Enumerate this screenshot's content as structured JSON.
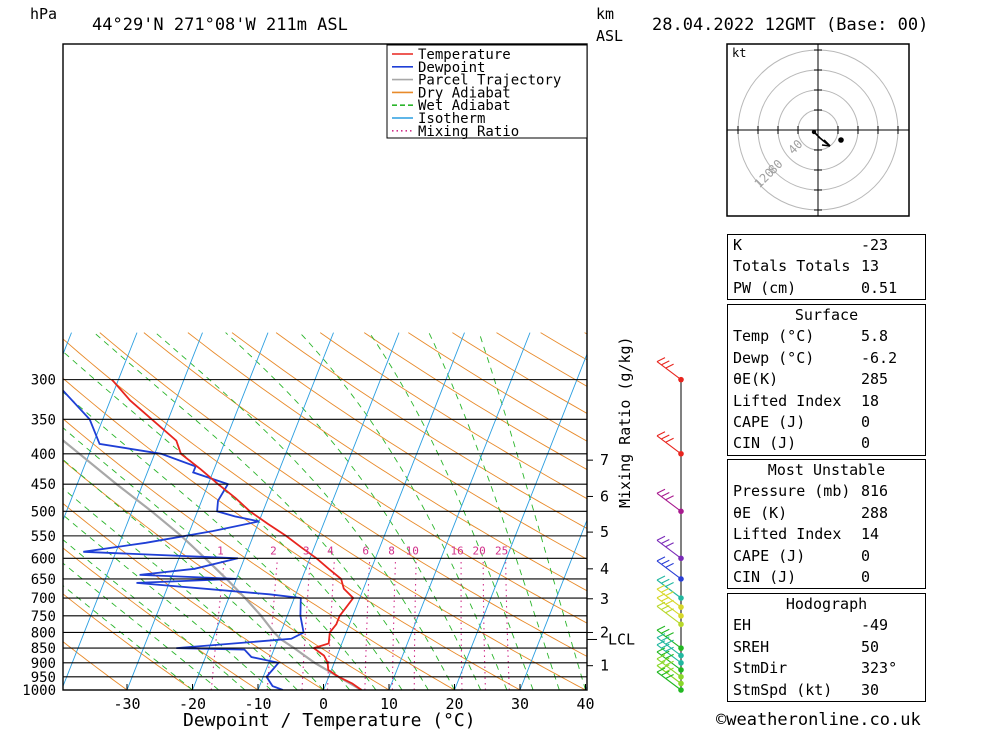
{
  "header": {
    "hpa_label": "hPa",
    "location": "44°29'N  271°08'W  211m  ASL",
    "km_label": "km",
    "asl_label": "ASL",
    "datetime": "28.04.2022  12GMT  (Base: 00)"
  },
  "chart_data": {
    "type": "skew-t",
    "xlabel": "Dewpoint / Temperature (°C)",
    "right_axis_label": "Mixing Ratio (g/kg)",
    "x_ticks": [
      -30,
      -20,
      -10,
      0,
      10,
      20,
      30,
      40
    ],
    "xlim": [
      -40,
      40
    ],
    "pressure_levels": [
      300,
      350,
      400,
      450,
      500,
      550,
      600,
      650,
      700,
      750,
      800,
      850,
      900,
      950,
      1000
    ],
    "ylim": [
      1000,
      300
    ],
    "km_ticks": [
      {
        "label": "1",
        "p": 910
      },
      {
        "label": "2",
        "p": 800
      },
      {
        "label": "3",
        "p": 702
      },
      {
        "label": "4",
        "p": 625
      },
      {
        "label": "5",
        "p": 542
      },
      {
        "label": "6",
        "p": 472
      },
      {
        "label": "7",
        "p": 410
      }
    ],
    "lcl": {
      "label": "LCL",
      "p": 822
    },
    "mixing_ratio_labels": [
      "1",
      "2",
      "3",
      "4",
      "6",
      "8",
      "10",
      "16",
      "20",
      "25"
    ],
    "mixing_ratio_values": [
      1,
      2,
      3,
      4,
      6,
      8,
      10,
      16,
      20,
      25
    ],
    "legend": [
      {
        "name": "Temperature",
        "color": "#e8251e",
        "style": "solid"
      },
      {
        "name": "Dewpoint",
        "color": "#1f3fd6",
        "style": "solid"
      },
      {
        "name": "Parcel Trajectory",
        "color": "#a8a8a8",
        "style": "solid"
      },
      {
        "name": "Dry Adiabat",
        "color": "#e88a2a",
        "style": "solid"
      },
      {
        "name": "Wet Adiabat",
        "color": "#2bb52b",
        "style": "dashed"
      },
      {
        "name": "Isotherm",
        "color": "#2a9ee0",
        "style": "solid"
      },
      {
        "name": "Mixing Ratio",
        "color": "#d1308a",
        "style": "dotted"
      }
    ],
    "series": [
      {
        "name": "Temperature",
        "color": "#e8251e",
        "points": [
          [
            1000,
            5.8
          ],
          [
            975,
            4.0
          ],
          [
            950,
            1.5
          ],
          [
            925,
            -0.5
          ],
          [
            900,
            -1.0
          ],
          [
            875,
            -2.0
          ],
          [
            850,
            -4.0
          ],
          [
            835,
            -2.0
          ],
          [
            800,
            -2.5
          ],
          [
            775,
            -2.0
          ],
          [
            750,
            -2.0
          ],
          [
            725,
            -1.5
          ],
          [
            700,
            -1.0
          ],
          [
            675,
            -3.0
          ],
          [
            650,
            -4.0
          ],
          [
            625,
            -6.5
          ],
          [
            600,
            -9.0
          ],
          [
            575,
            -12.0
          ],
          [
            550,
            -15.0
          ],
          [
            525,
            -18.5
          ],
          [
            500,
            -22.0
          ],
          [
            475,
            -25.0
          ],
          [
            450,
            -28.5
          ],
          [
            425,
            -32.0
          ],
          [
            400,
            -36.0
          ],
          [
            380,
            -37.5
          ],
          [
            350,
            -42.5
          ],
          [
            325,
            -47.0
          ],
          [
            300,
            -51.0
          ]
        ]
      },
      {
        "name": "Dewpoint",
        "color": "#1f3fd6",
        "points": [
          [
            1000,
            -6.2
          ],
          [
            985,
            -8.0
          ],
          [
            950,
            -9.5
          ],
          [
            925,
            -9.0
          ],
          [
            900,
            -8.5
          ],
          [
            880,
            -13.0
          ],
          [
            855,
            -14.5
          ],
          [
            850,
            -25.0
          ],
          [
            820,
            -8.0
          ],
          [
            800,
            -6.5
          ],
          [
            750,
            -8.0
          ],
          [
            700,
            -9.0
          ],
          [
            690,
            -14.0
          ],
          [
            660,
            -35.0
          ],
          [
            650,
            -20.0
          ],
          [
            640,
            -35.0
          ],
          [
            625,
            -27.0
          ],
          [
            600,
            -21.0
          ],
          [
            585,
            -45.0
          ],
          [
            565,
            -36.0
          ],
          [
            540,
            -26.5
          ],
          [
            520,
            -20.0
          ],
          [
            510,
            -24.0
          ],
          [
            500,
            -27.0
          ],
          [
            480,
            -27.5
          ],
          [
            450,
            -27.0
          ],
          [
            430,
            -33.0
          ],
          [
            420,
            -33.0
          ],
          [
            400,
            -39.0
          ],
          [
            385,
            -49.0
          ],
          [
            350,
            -52.0
          ],
          [
            300,
            -60.0
          ]
        ]
      },
      {
        "name": "Parcel Trajectory",
        "color": "#a8a8a8",
        "points": [
          [
            1000,
            5.8
          ],
          [
            950,
            1.5
          ],
          [
            900,
            -3.0
          ],
          [
            850,
            -7.0
          ],
          [
            822,
            -9.5
          ],
          [
            800,
            -11.0
          ],
          [
            750,
            -14.0
          ],
          [
            700,
            -17.5
          ],
          [
            650,
            -21.5
          ],
          [
            600,
            -26.0
          ],
          [
            550,
            -31.0
          ],
          [
            500,
            -37.0
          ],
          [
            450,
            -44.0
          ],
          [
            400,
            -51.5
          ],
          [
            350,
            -60.0
          ],
          [
            300,
            -69.0
          ]
        ]
      }
    ],
    "wind_barbs": [
      {
        "p": 300,
        "color": "#e8251e"
      },
      {
        "p": 400,
        "color": "#e8251e"
      },
      {
        "p": 500,
        "color": "#a81a8f"
      },
      {
        "p": 600,
        "color": "#7a2ab8"
      },
      {
        "p": 650,
        "color": "#2a3ed6"
      },
      {
        "p": 700,
        "color": "#22b8a0"
      },
      {
        "p": 725,
        "color": "#d8d82a"
      },
      {
        "p": 750,
        "color": "#d8d82a"
      },
      {
        "p": 775,
        "color": "#b8d82a"
      },
      {
        "p": 850,
        "color": "#22b822"
      },
      {
        "p": 875,
        "color": "#22b8a0"
      },
      {
        "p": 900,
        "color": "#22b8a0"
      },
      {
        "p": 925,
        "color": "#22b822"
      },
      {
        "p": 950,
        "color": "#8ad82a"
      },
      {
        "p": 975,
        "color": "#8ad82a"
      },
      {
        "p": 1000,
        "color": "#22b822"
      }
    ]
  },
  "hodograph": {
    "unit_label": "kt",
    "ring_labels": [
      "40",
      "80",
      "120"
    ]
  },
  "indices": {
    "rows": [
      {
        "label": "K",
        "value": "-23"
      },
      {
        "label": "Totals Totals",
        "value": "13"
      },
      {
        "label": "PW (cm)",
        "value": "0.51"
      }
    ]
  },
  "surface": {
    "title": "Surface",
    "rows": [
      {
        "label": "Temp (°C)",
        "value": "5.8"
      },
      {
        "label": "Dewp (°C)",
        "value": "-6.2"
      },
      {
        "label": "θE(K)",
        "value": "285"
      },
      {
        "label": "Lifted Index",
        "value": "18"
      },
      {
        "label": "CAPE (J)",
        "value": "0"
      },
      {
        "label": "CIN (J)",
        "value": "0"
      }
    ]
  },
  "most_unstable": {
    "title": "Most Unstable",
    "rows": [
      {
        "label": "Pressure (mb)",
        "value": "816"
      },
      {
        "label": "θE (K)",
        "value": "288"
      },
      {
        "label": "Lifted Index",
        "value": "14"
      },
      {
        "label": "CAPE (J)",
        "value": "0"
      },
      {
        "label": "CIN (J)",
        "value": "0"
      }
    ]
  },
  "hodograph_stats": {
    "title": "Hodograph",
    "rows": [
      {
        "label": "EH",
        "value": "-49"
      },
      {
        "label": "SREH",
        "value": "50"
      },
      {
        "label": "StmDir",
        "value": "323°"
      },
      {
        "label": "StmSpd (kt)",
        "value": "30"
      }
    ]
  },
  "footer": {
    "copyright": "©weatheronline.co.uk"
  }
}
